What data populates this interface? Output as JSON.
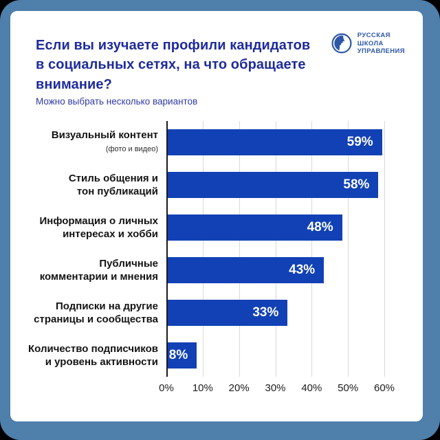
{
  "header": {
    "title": "Если вы изучаете профили кандидатов в социальных сетях, на что обращаете внимание?",
    "subtitle": "Можно выбрать несколько вариантов"
  },
  "logo": {
    "line1": "РУССКАЯ",
    "line2": "ШКОЛА",
    "line3": "УПРАВЛЕНИЯ"
  },
  "colors": {
    "bar": "#1141b5",
    "frame": "#4f7fab",
    "card": "#ffffff",
    "title_text": "#1e2b9b",
    "axis": "#1a1a1a",
    "gridline": "#d9d9d9",
    "value_label": "#ffffff",
    "logo": "#2e57a8"
  },
  "chart_data": {
    "type": "bar",
    "orientation": "horizontal",
    "title": "Если вы изучаете профили кандидатов в социальных сетях, на что обращаете внимание?",
    "subtitle": "Можно выбрать несколько вариантов",
    "categories": [
      {
        "lines": [
          "Визуальный контент"
        ],
        "sublabel": "(фото и видео)"
      },
      {
        "lines": [
          "Стиль общения и",
          "тон публикаций"
        ],
        "sublabel": ""
      },
      {
        "lines": [
          "Информация о личных",
          "интересах и хобби"
        ],
        "sublabel": ""
      },
      {
        "lines": [
          "Публичные",
          "комментарии и мнения"
        ],
        "sublabel": ""
      },
      {
        "lines": [
          "Подписки на другие",
          "страницы и сообщества"
        ],
        "sublabel": ""
      },
      {
        "lines": [
          "Количество подписчиков",
          "и уровень активности"
        ],
        "sublabel": ""
      }
    ],
    "values": [
      59,
      58,
      48,
      43,
      33,
      8
    ],
    "value_labels": [
      "59%",
      "58%",
      "48%",
      "43%",
      "33%",
      "8%"
    ],
    "xlim": [
      0,
      60
    ],
    "x_ticks": [
      "0%",
      "10%",
      "20%",
      "30%",
      "40%",
      "50%",
      "60%"
    ],
    "grid": true,
    "legend": "none"
  }
}
